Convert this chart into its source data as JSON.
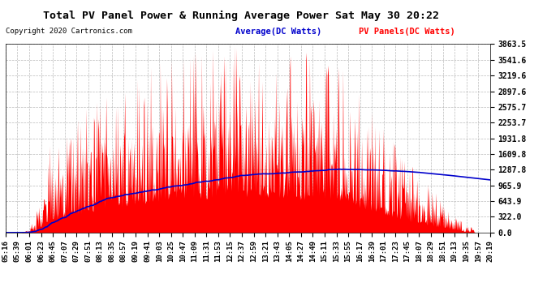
{
  "title": "Total PV Panel Power & Running Average Power Sat May 30 20:22",
  "copyright": "Copyright 2020 Cartronics.com",
  "legend_avg": "Average(DC Watts)",
  "legend_pv": "PV Panels(DC Watts)",
  "yticks": [
    0.0,
    322.0,
    643.9,
    965.9,
    1287.8,
    1609.8,
    1931.8,
    2253.7,
    2575.7,
    2897.6,
    3219.6,
    3541.6,
    3863.5
  ],
  "ymax": 3863.5,
  "xtick_labels": [
    "05:16",
    "05:39",
    "06:01",
    "06:23",
    "06:45",
    "07:07",
    "07:29",
    "07:51",
    "08:13",
    "08:35",
    "08:57",
    "09:19",
    "09:41",
    "10:03",
    "10:25",
    "10:47",
    "11:09",
    "11:31",
    "11:53",
    "12:15",
    "12:37",
    "12:59",
    "13:21",
    "13:43",
    "14:05",
    "14:27",
    "14:49",
    "15:11",
    "15:33",
    "15:55",
    "16:17",
    "16:39",
    "17:01",
    "17:23",
    "17:45",
    "18:07",
    "18:29",
    "18:51",
    "19:13",
    "19:35",
    "19:57",
    "20:19"
  ],
  "bg_color": "#ffffff",
  "plot_bg_color": "#ffffff",
  "grid_color": "#aaaaaa",
  "pv_color": "#ff0000",
  "avg_color": "#0000cc",
  "title_color": "#000000",
  "copyright_color": "#000000",
  "legend_avg_color": "#0000cc",
  "legend_pv_color": "#ff0000"
}
